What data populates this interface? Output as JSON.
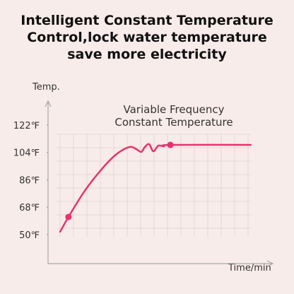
{
  "chart_data": {
    "type": "line",
    "title": [
      "Intelligent Constant Temperature",
      "Control,lock water temperature",
      "save more electricity"
    ],
    "annotation": [
      "Variable Frequency",
      "Constant Temperature"
    ],
    "y_label": "Temp.",
    "x_label": "Time/min",
    "x": [
      5.4,
      9.1,
      16.4,
      24.3,
      30.6,
      36.3,
      39.4,
      41.6,
      43.2,
      45.1,
      47.0,
      49.2,
      51.7,
      54.6,
      90.5
    ],
    "series": [
      {
        "name": "Temperature",
        "color": "#e8326e",
        "values": [
          51.9,
          61.6,
          78.8,
          93.6,
          102.9,
          107.5,
          106.1,
          104.3,
          107.5,
          109.4,
          104.7,
          108.4,
          108.0,
          108.9,
          108.9
        ]
      }
    ],
    "markers": [
      1,
      13
    ],
    "xlim": [
      0,
      100
    ],
    "ylim": [
      50,
      120
    ],
    "yticks": [
      {
        "value": 50,
        "label": "50℉"
      },
      {
        "value": 68,
        "label": "68℉"
      },
      {
        "value": 86,
        "label": "86℉"
      },
      {
        "value": 104,
        "label": "104℉"
      },
      {
        "value": 122,
        "label": "122℉"
      }
    ]
  }
}
